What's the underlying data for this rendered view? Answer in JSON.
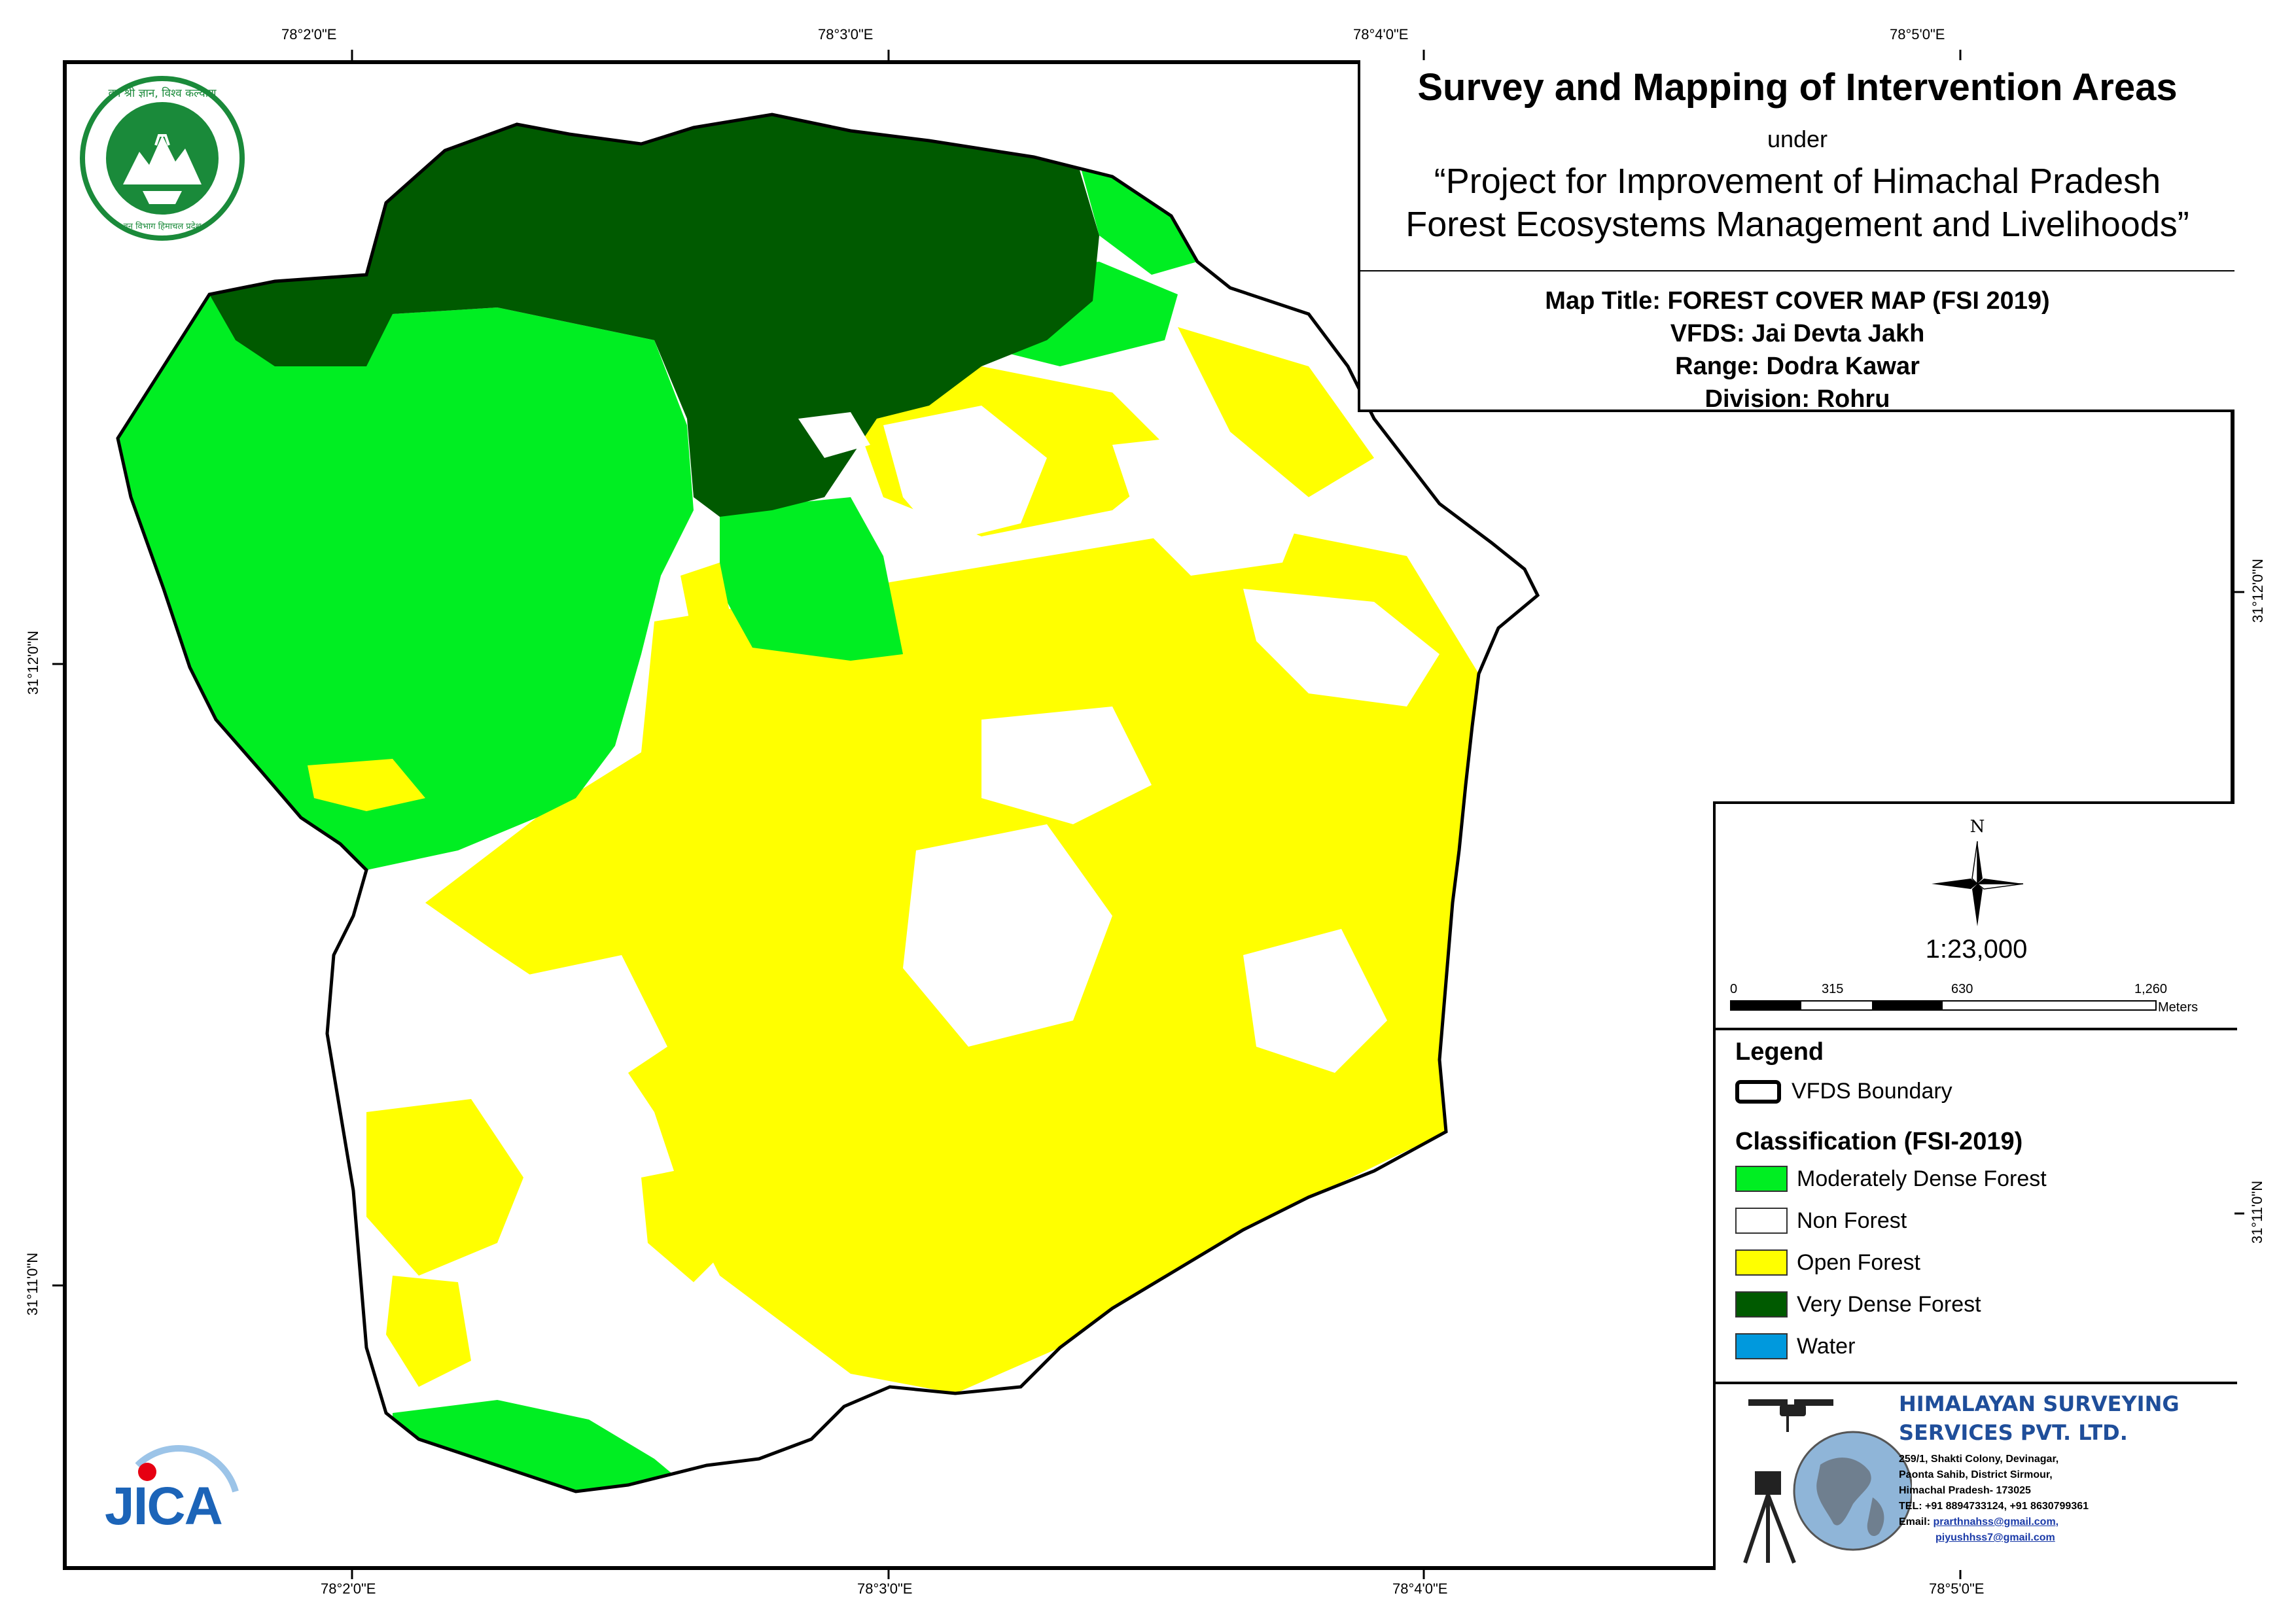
{
  "header": {
    "title": "Survey and Mapping of Intervention Areas",
    "under": "under",
    "project_line1": "“Project for Improvement of Himachal Pradesh",
    "project_line2": "Forest Ecosystems Management and Livelihoods”"
  },
  "map_info": {
    "title": "Map Title: FOREST COVER MAP (FSI 2019)",
    "vfds": "VFDS: Jai Devta Jakh",
    "range": "Range: Dodra Kawar",
    "division": "Division: Rohru"
  },
  "graticule": {
    "top": [
      "78°2'0\"E",
      "78°3'0\"E",
      "78°4'0\"E",
      "78°5'0\"E"
    ],
    "bottom": [
      "78°2'0\"E",
      "78°3'0\"E",
      "78°4'0\"E",
      "78°5'0\"E"
    ],
    "left": [
      "31°12'0\"N",
      "31°11'0\"N"
    ],
    "right": [
      "31°12'0\"N",
      "31°11'0\"N"
    ]
  },
  "north_arrow": {
    "label": "N",
    "icon": "compass-rose-icon"
  },
  "scale": {
    "ratio": "1:23,000",
    "ticks": [
      "0",
      "315",
      "630",
      "1,260"
    ],
    "unit": "Meters"
  },
  "legend": {
    "title": "Legend",
    "boundary_label": "VFDS Boundary",
    "classification_title": "Classification (FSI-2019)",
    "items": [
      {
        "label": "Moderately Dense Forest",
        "color": "#00ee22"
      },
      {
        "label": "Non Forest",
        "color": "#ffffff"
      },
      {
        "label": "Open Forest",
        "color": "#ffff00"
      },
      {
        "label": "Very Dense Forest",
        "color": "#005a00"
      },
      {
        "label": "Water",
        "color": "#0099dd"
      }
    ]
  },
  "company": {
    "name_line1": "HIMALAYAN SURVEYING",
    "name_line2": "SERVICES PVT. LTD.",
    "address1": "259/1, Shakti Colony, Devinagar,",
    "address2": "Paonta Sahib, District Sirmour,",
    "address3": "Himachal Pradesh- 173025",
    "phone": "TEL: +91 8894733124, +91 8630799361",
    "email_label": "Email:",
    "email1": "prarthnahss@gmail.com,",
    "email2": "piyushhss7@gmail.com"
  },
  "logos": {
    "forest_dept_text_top": "वन श्री ज्ञान, विश्व कल्याण",
    "forest_dept_text_bottom": "वन विभाग हिमाचल प्रदेश",
    "jica_text": "JICA"
  },
  "colors": {
    "very_dense": "#005a00",
    "moderately_dense": "#00ee22",
    "open": "#ffff00",
    "non_forest": "#ffffff",
    "water": "#0099dd",
    "emblem_green": "#1a8a3a",
    "jica_blue": "#1c64b8",
    "jica_red": "#e60012"
  }
}
